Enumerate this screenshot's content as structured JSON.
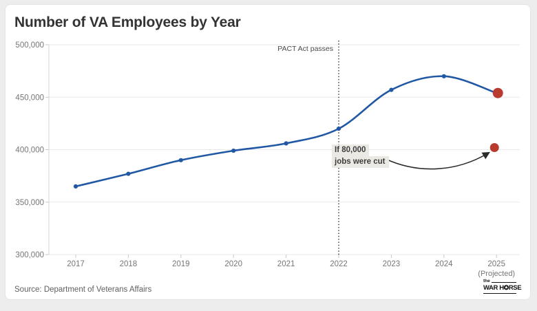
{
  "header": {
    "title": "Number of VA Employees by Year"
  },
  "chart_data": {
    "type": "line",
    "title": "Number of VA Employees by Year",
    "categories": [
      "2017",
      "2018",
      "2019",
      "2020",
      "2021",
      "2022",
      "2023",
      "2024",
      "2025"
    ],
    "category_sublabels": [
      "",
      "",
      "",
      "",
      "",
      "",
      "",
      "",
      "(Projected)"
    ],
    "series": [
      {
        "name": "VA employees",
        "color": "#2158a4",
        "values": [
          365000,
          377000,
          390000,
          399000,
          406000,
          420000,
          457000,
          470000,
          454000
        ]
      }
    ],
    "final_point": {
      "category": "2025",
      "value": 454000,
      "color": "#b93b30"
    },
    "cut_scenario": {
      "category": "2025",
      "value": 402000,
      "color": "#b93b30",
      "label_line1": "If 80,000",
      "label_line2": "jobs were cut"
    },
    "event_line": {
      "category": "2022",
      "label": "PACT Act passes",
      "style": "dotted"
    },
    "ylim": [
      300000,
      500000
    ],
    "yticks": [
      300000,
      350000,
      400000,
      450000,
      500000
    ],
    "grid": "horizontal",
    "legend": "none",
    "colors": {
      "gridline": "#e9e9e9",
      "axis": "#d4d4d4",
      "tick": "#c9c9c9",
      "tick_label": "#757575",
      "event_line": "#333333",
      "arrow": "#2b2b2b"
    }
  },
  "footer": {
    "source": "Source: Department of Veterans Affairs",
    "logo": {
      "the": "the",
      "word1": "WAR H",
      "icon_name": "compass-star",
      "icon_glyph": "✪",
      "word2": "RSE"
    }
  }
}
